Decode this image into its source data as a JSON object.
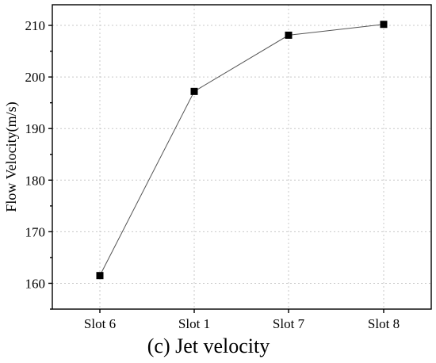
{
  "chart_data": {
    "type": "line",
    "caption": "(c) Jet velocity",
    "xlabel": "",
    "ylabel": "Flow Velocity(m/s)",
    "categories": [
      "Slot 6",
      "Slot 1",
      "Slot 7",
      "Slot 8"
    ],
    "series": [
      {
        "values": [
          161.5,
          197.2,
          208.1,
          210.2
        ]
      }
    ],
    "ylim": [
      155,
      214
    ],
    "yticks": [
      160,
      170,
      180,
      190,
      200,
      210
    ],
    "grid": true,
    "marker": "square",
    "colors": {
      "line": "#555555",
      "marker": "#000000",
      "grid": "#c8c8c8"
    }
  }
}
